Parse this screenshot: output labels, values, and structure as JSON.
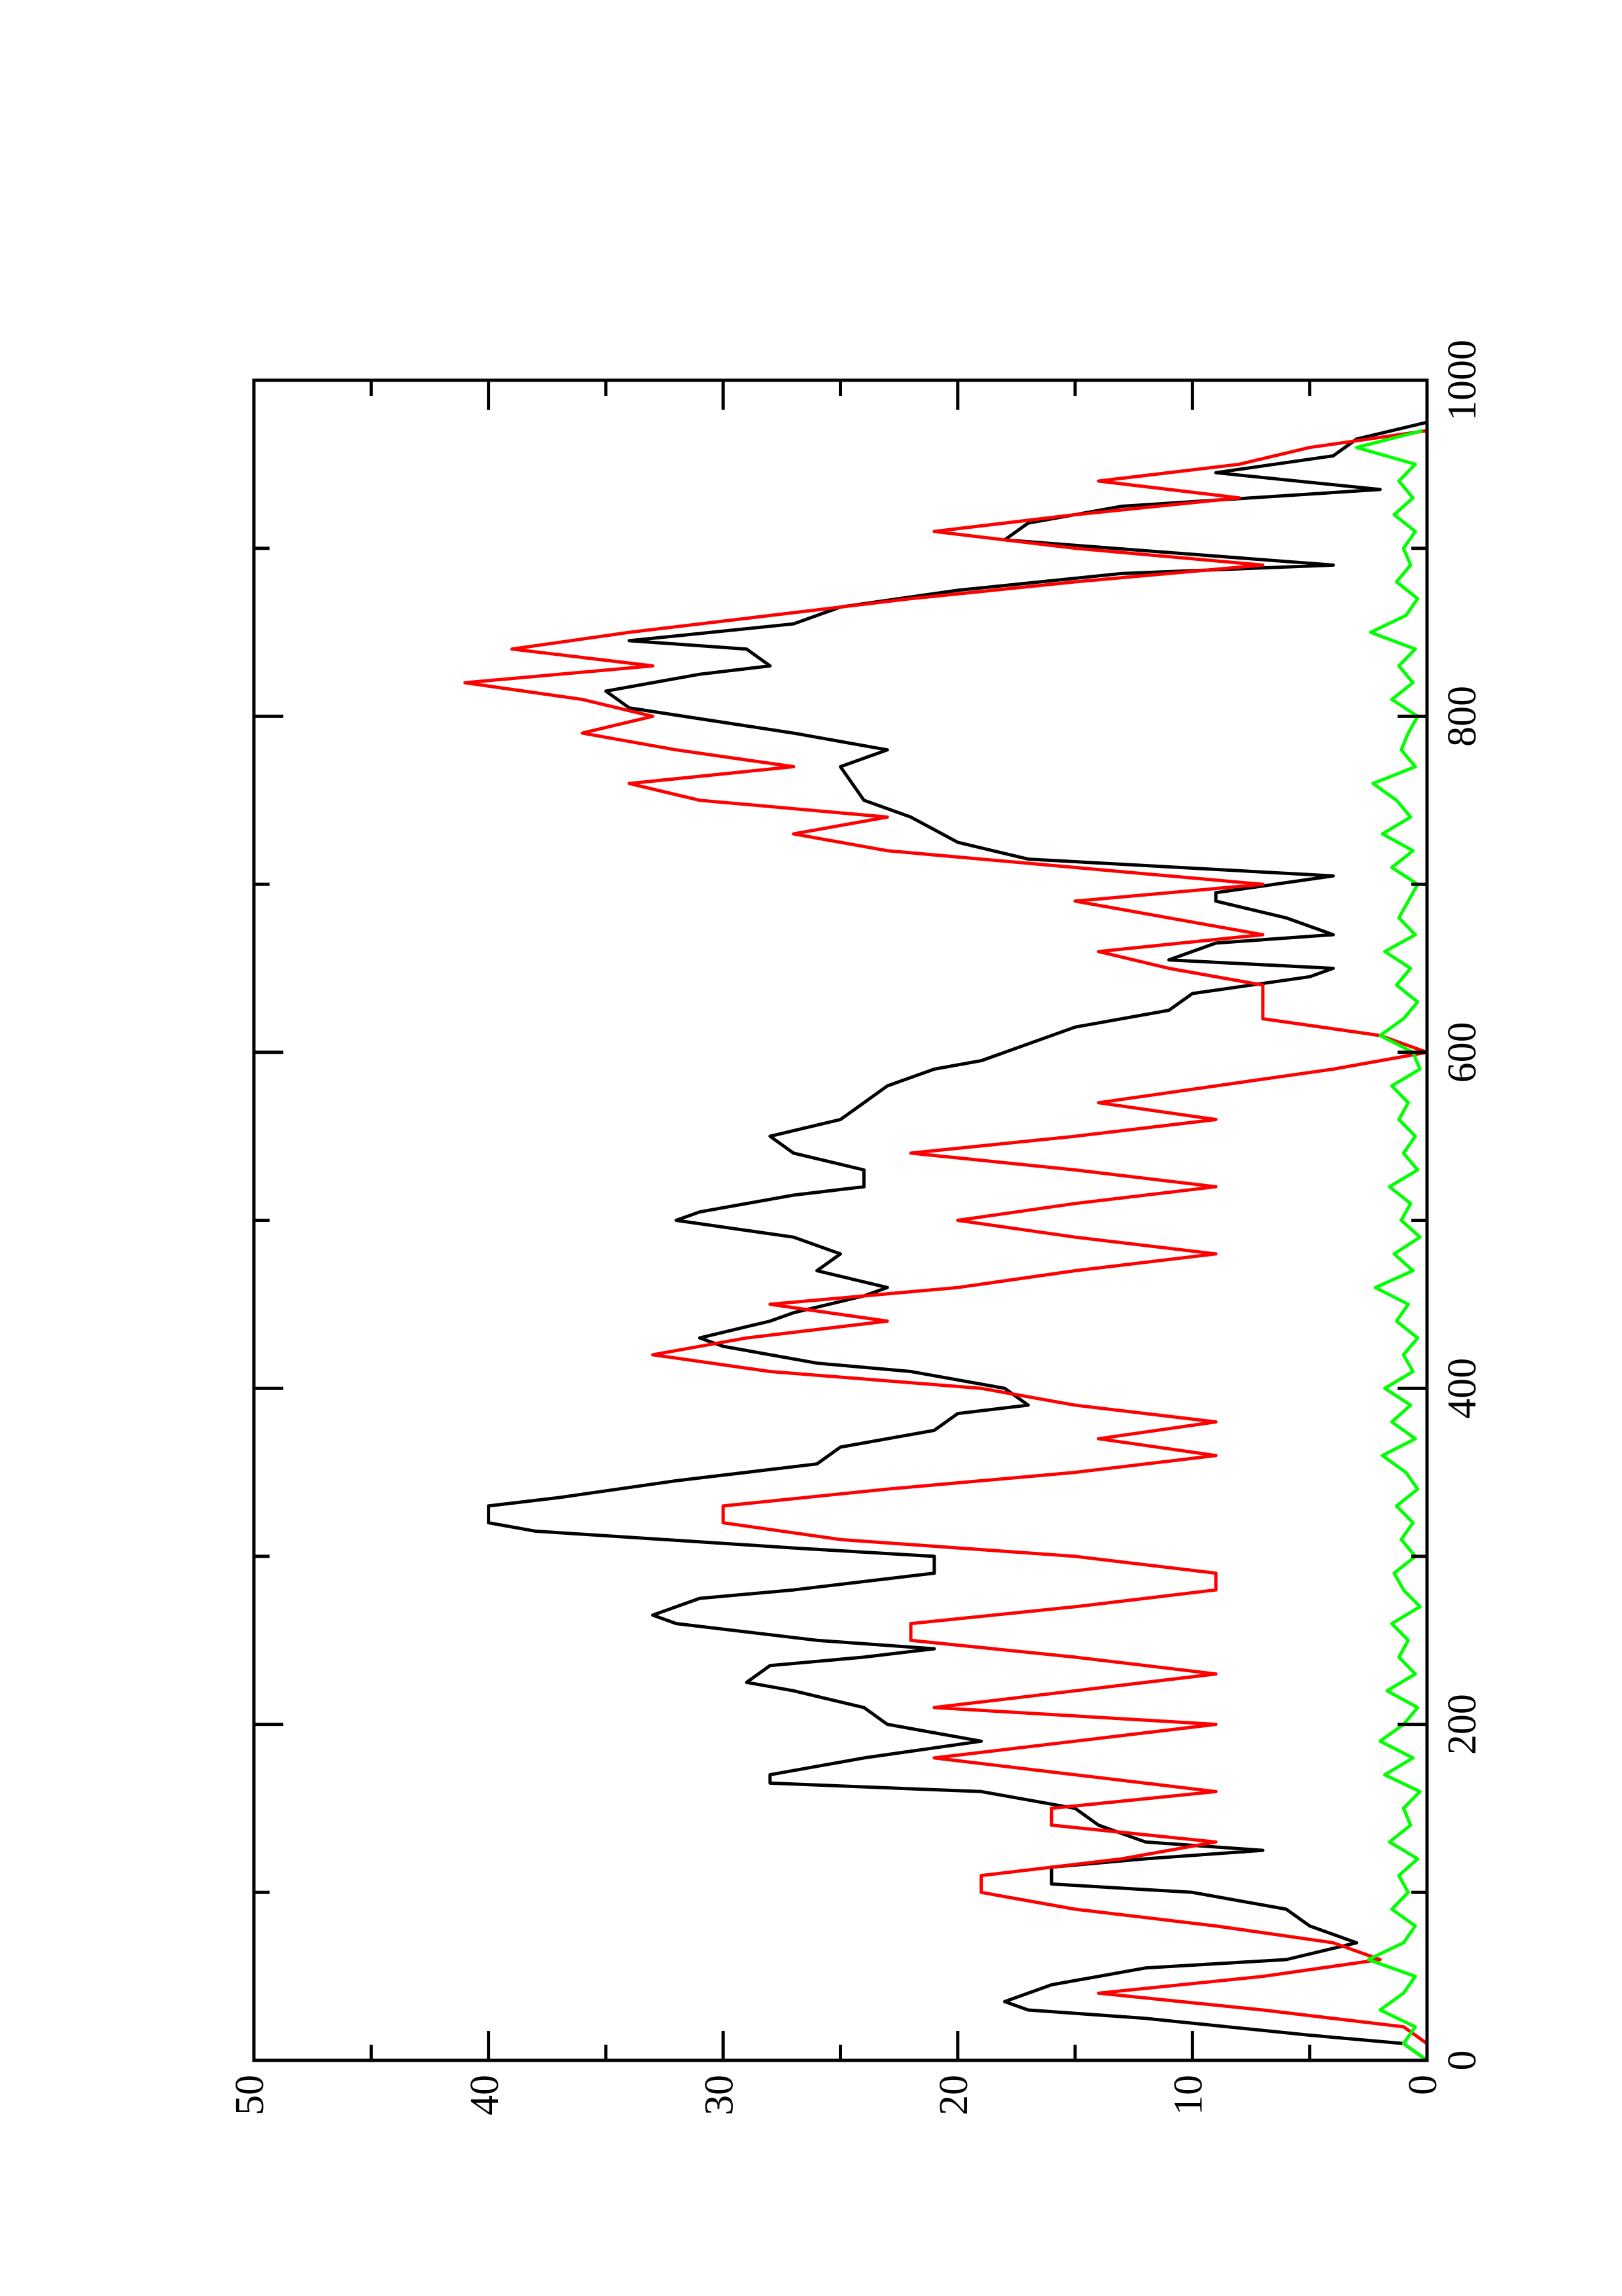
{
  "chart_data": {
    "type": "line",
    "xlim": [
      0,
      1000
    ],
    "xticks": [
      0,
      200,
      400,
      600,
      800,
      1000
    ],
    "xminorticks": [
      100,
      300,
      500,
      700,
      900
    ],
    "ylim": [
      0,
      50
    ],
    "yticks": [
      0,
      10,
      20,
      30,
      40,
      50
    ],
    "yminorticks": [
      5,
      15,
      25,
      35,
      45
    ],
    "series": [
      {
        "color": "#000000",
        "x": [
          0,
          10,
          15,
          25,
          30,
          35,
          45,
          55,
          60,
          70,
          75,
          80,
          90,
          100,
          105,
          115,
          120,
          125,
          130,
          140,
          150,
          160,
          165,
          170,
          180,
          190,
          200,
          210,
          220,
          225,
          235,
          240,
          245,
          250,
          260,
          265,
          275,
          280,
          290,
          300,
          305,
          315,
          320,
          330,
          335,
          345,
          355,
          365,
          375,
          385,
          390,
          400,
          410,
          415,
          425,
          430,
          440,
          445,
          455,
          460,
          470,
          480,
          490,
          500,
          505,
          515,
          520,
          530,
          540,
          550,
          560,
          570,
          580,
          590,
          595,
          600,
          615,
          625,
          635,
          645,
          650,
          655,
          665,
          670,
          680,
          690,
          695,
          705,
          715,
          725,
          740,
          750,
          770,
          780,
          790,
          805,
          815,
          825,
          830,
          840,
          845,
          855,
          865,
          875,
          885,
          890,
          905,
          915,
          925,
          935,
          945,
          955,
          965,
          975
        ],
        "values": [
          0,
          1,
          5,
          12,
          17,
          18,
          16,
          12,
          6,
          3,
          4,
          5,
          6,
          10,
          16,
          16,
          12,
          7,
          12,
          14,
          15,
          19,
          28,
          28,
          24,
          19,
          23,
          24,
          27,
          29,
          28,
          24,
          21,
          26,
          32,
          33,
          31,
          27,
          21,
          21,
          27,
          38,
          40,
          40,
          37,
          32,
          26,
          25,
          21,
          20,
          17,
          18,
          22,
          26,
          30,
          31,
          28,
          27,
          24,
          23,
          26,
          25,
          27,
          32,
          31,
          27,
          24,
          24,
          27,
          28,
          25,
          24,
          23,
          21,
          19,
          18,
          15,
          11,
          10,
          5,
          4,
          11,
          9,
          4,
          6,
          9,
          9,
          4,
          17,
          20,
          22,
          24,
          25,
          23,
          27,
          34,
          35,
          31,
          28,
          29,
          34,
          27,
          25,
          20,
          13,
          4,
          18,
          17,
          13,
          2,
          9,
          4,
          3,
          0
        ]
      },
      {
        "color": "#ff0000",
        "x": [
          0,
          10,
          20,
          30,
          40,
          50,
          60,
          70,
          80,
          90,
          100,
          110,
          120,
          130,
          140,
          150,
          160,
          170,
          180,
          190,
          200,
          210,
          220,
          230,
          240,
          250,
          260,
          270,
          280,
          290,
          300,
          310,
          320,
          330,
          340,
          350,
          360,
          370,
          380,
          390,
          400,
          410,
          420,
          430,
          440,
          450,
          460,
          470,
          480,
          490,
          500,
          510,
          520,
          530,
          540,
          550,
          560,
          570,
          580,
          590,
          600,
          610,
          620,
          630,
          640,
          650,
          660,
          670,
          680,
          690,
          700,
          710,
          720,
          730,
          740,
          750,
          760,
          770,
          780,
          790,
          800,
          810,
          820,
          830,
          840,
          850,
          860,
          870,
          880,
          890,
          900,
          910,
          920,
          930,
          940,
          950,
          960,
          970
        ],
        "values": [
          0,
          0,
          1,
          7,
          14,
          7,
          2,
          4,
          9,
          15,
          19,
          19,
          13,
          9,
          16,
          16,
          9,
          15,
          21,
          15,
          9,
          21,
          15,
          9,
          15,
          22,
          22,
          15,
          9,
          9,
          15,
          25,
          30,
          30,
          23,
          15,
          9,
          14,
          9,
          15,
          19,
          28,
          33,
          29,
          23,
          28,
          20,
          15,
          9,
          15,
          20,
          15,
          9,
          15,
          22,
          15,
          9,
          14,
          9,
          4,
          0,
          2,
          7,
          7,
          7,
          11,
          14,
          7,
          11,
          15,
          7,
          15,
          23,
          27,
          23,
          31,
          34,
          27,
          32,
          36,
          33,
          36,
          41,
          33,
          39,
          34,
          28,
          22,
          15,
          7,
          15,
          21,
          15,
          8,
          14,
          8,
          5,
          0
        ]
      },
      {
        "color": "#00ff00",
        "x": [
          0,
          10,
          20,
          30,
          40,
          50,
          60,
          70,
          80,
          90,
          100,
          110,
          120,
          130,
          140,
          150,
          160,
          170,
          180,
          190,
          200,
          210,
          220,
          230,
          240,
          250,
          260,
          270,
          280,
          290,
          300,
          310,
          320,
          330,
          340,
          350,
          360,
          370,
          380,
          390,
          400,
          410,
          420,
          430,
          440,
          450,
          460,
          470,
          480,
          490,
          500,
          510,
          520,
          530,
          540,
          550,
          560,
          570,
          580,
          590,
          600,
          610,
          620,
          630,
          640,
          650,
          660,
          670,
          680,
          690,
          700,
          710,
          720,
          730,
          740,
          750,
          760,
          770,
          780,
          790,
          800,
          810,
          820,
          830,
          840,
          850,
          860,
          870,
          880,
          890,
          900,
          910,
          920,
          930,
          940,
          950,
          960,
          970
        ],
        "values": [
          0,
          1,
          0.5,
          2,
          1,
          0.5,
          2.5,
          1,
          0.5,
          1.5,
          0.8,
          1.2,
          0.4,
          1.6,
          0.7,
          1,
          0.3,
          1.8,
          0.6,
          2,
          1,
          0.4,
          1.7,
          0.5,
          1.2,
          0.8,
          1.5,
          0.3,
          1,
          1.4,
          0.5,
          1.1,
          0.6,
          1.3,
          0.4,
          0.9,
          1.9,
          0.5,
          1.5,
          0.7,
          1.8,
          0.6,
          1,
          0.4,
          1.3,
          0.8,
          2.2,
          0.6,
          1.4,
          0.3,
          1.1,
          0.7,
          1.6,
          0.4,
          1,
          0.5,
          1.2,
          0.8,
          1.5,
          0.3,
          0.6,
          2,
          1,
          0.4,
          1.3,
          0.7,
          1.8,
          0.5,
          1.2,
          0.8,
          0.4,
          1.5,
          0.6,
          1.9,
          0.7,
          1.3,
          2.3,
          0.5,
          1.1,
          0.8,
          0.4,
          1.5,
          0.6,
          1.2,
          0.5,
          2.4,
          0.9,
          0.4,
          1.3,
          0.7,
          1,
          0.5,
          1.4,
          0.6,
          1.2,
          0.5,
          3,
          0.2
        ]
      }
    ]
  }
}
